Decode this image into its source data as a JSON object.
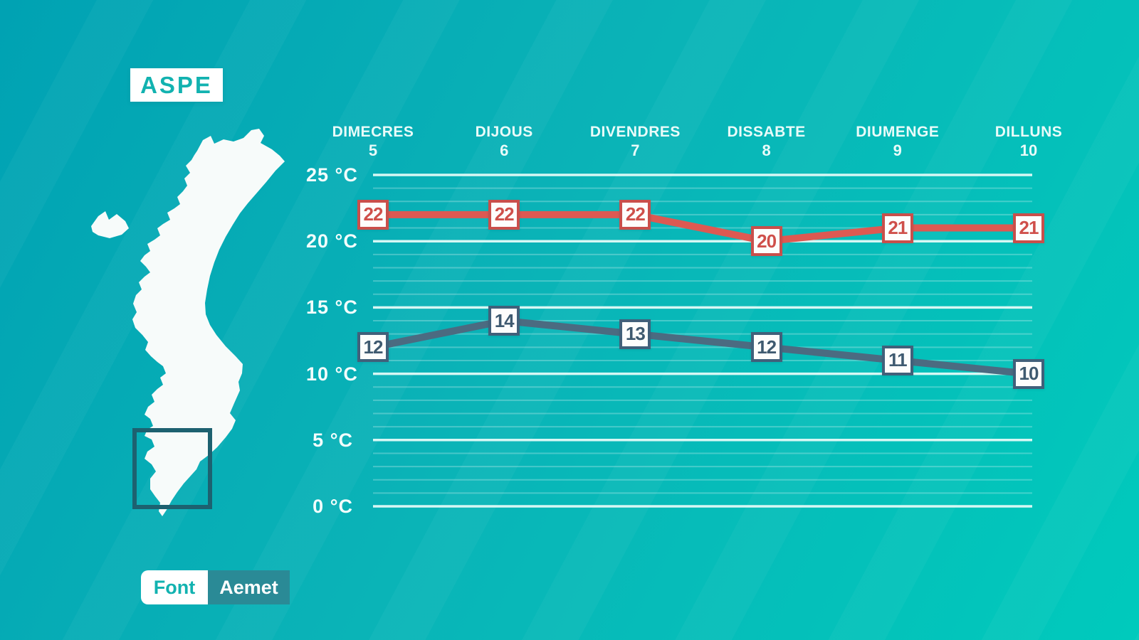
{
  "page": {
    "background_start": "#00a2b3",
    "background_mid": "#0ab3b7",
    "background_end": "#00cabc"
  },
  "header": {
    "title": "ASPE"
  },
  "map": {
    "land_color": "#f7fbfa",
    "highlight_square_color": "#1d6170"
  },
  "source": {
    "label": "Font",
    "value": "Aemet",
    "accent_color": "#12b2b0",
    "value_box_color": "#2a8a96"
  },
  "chart_data": {
    "type": "line",
    "title": "",
    "categories": [
      "DIMECRES",
      "DIJOUS",
      "DIVENDRES",
      "DISSABTE",
      "DIUMENGE",
      "DILLUNS"
    ],
    "category_numbers": [
      "5",
      "6",
      "7",
      "8",
      "9",
      "10"
    ],
    "series": [
      {
        "name": "max-temperature",
        "color": "#dd5952",
        "label_border": "#c94f4b",
        "label_text": "#cf4f4a",
        "values": [
          22,
          22,
          22,
          20,
          21,
          21
        ]
      },
      {
        "name": "min-temperature",
        "color": "#4b6b81",
        "label_border": "#41607a",
        "label_text": "#3f5a70",
        "values": [
          12,
          14,
          13,
          12,
          11,
          10
        ]
      }
    ],
    "yticks": [
      25,
      20,
      15,
      10,
      5,
      0
    ],
    "ytick_suffix": " °C",
    "ylim": [
      0,
      26
    ],
    "grid": "horizontal major every 5°C (bright), minor every 1°C (faint)",
    "legend": "none",
    "major_grid_color": "#e2fbf8",
    "minor_grid_opacity": 0.25
  }
}
